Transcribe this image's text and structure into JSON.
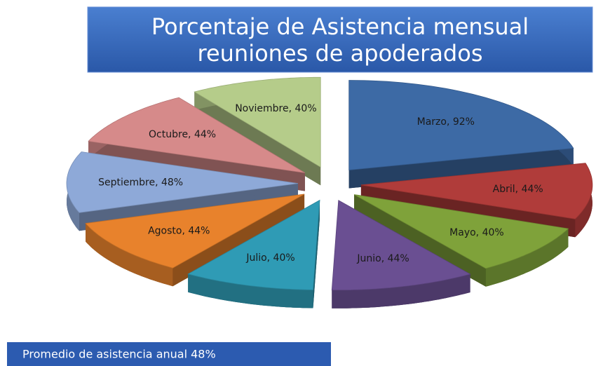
{
  "chart_data": {
    "type": "pie",
    "title": "Porcentaje de Asistencia mensual reuniones de apoderados",
    "categories": [
      "Marzo",
      "Abril",
      "Mayo",
      "Junio",
      "Julio",
      "Agosto",
      "Septiembre",
      "Octubre",
      "Noviembre"
    ],
    "values": [
      92,
      44,
      40,
      44,
      40,
      44,
      48,
      44,
      40
    ],
    "value_labels": [
      "Marzo, 92%",
      "Abril, 44%",
      "Mayo, 40%",
      "Junio, 44%",
      "Julio, 40%",
      "Agosto, 44%",
      "Septiembre, 48%",
      "Octubre, 44%",
      "Noviembre, 40%"
    ],
    "colors": [
      "#3d6aa5",
      "#b03c3a",
      "#7fa23a",
      "#6a4f92",
      "#2f9bb5",
      "#e8822c",
      "#8ea9d8",
      "#d68a8a",
      "#b5cc8a"
    ],
    "annotation": "Promedio de asistencia  anual 48%"
  }
}
